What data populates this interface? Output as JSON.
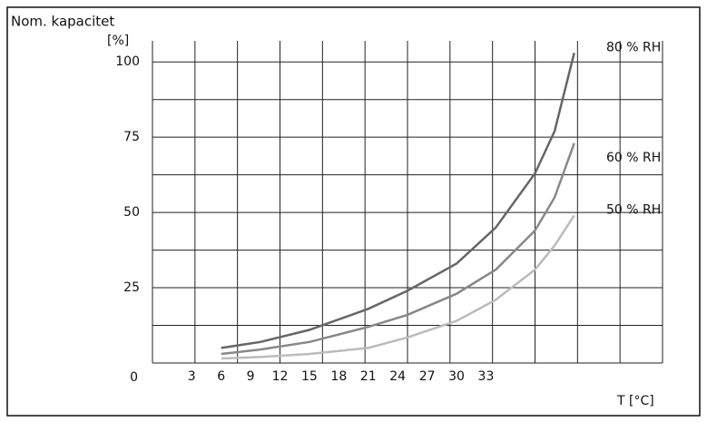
{
  "chart_data": {
    "type": "line",
    "title": "Nom. kapacitet",
    "y_unit": "[%]",
    "x_label": "T [°C]",
    "xlim": [
      -1,
      51
    ],
    "xticks": [
      3,
      6,
      9,
      12,
      15,
      18,
      21,
      24,
      27,
      30,
      33
    ],
    "ylim": [
      0,
      107
    ],
    "yticks": [
      0,
      25,
      50,
      75,
      100
    ],
    "y_minor_ticks": [
      12.5,
      37.5,
      62.5,
      87.5
    ],
    "grid": true,
    "x": [
      6,
      10,
      15,
      21,
      25,
      30,
      34,
      38,
      40,
      42
    ],
    "series": [
      {
        "name": "80 % RH",
        "color": "#666666",
        "values": [
          5,
          7,
          11,
          18,
          24,
          33,
          45,
          63,
          77,
          103
        ]
      },
      {
        "name": "60 % RH",
        "color": "#888888",
        "values": [
          3,
          4.5,
          7,
          12,
          16,
          23,
          31,
          44,
          55,
          73
        ]
      },
      {
        "name": "50 % RH",
        "color": "#bbbbbb",
        "values": [
          1.5,
          2,
          3,
          5,
          8.5,
          14,
          21,
          31,
          39,
          49
        ]
      }
    ]
  }
}
